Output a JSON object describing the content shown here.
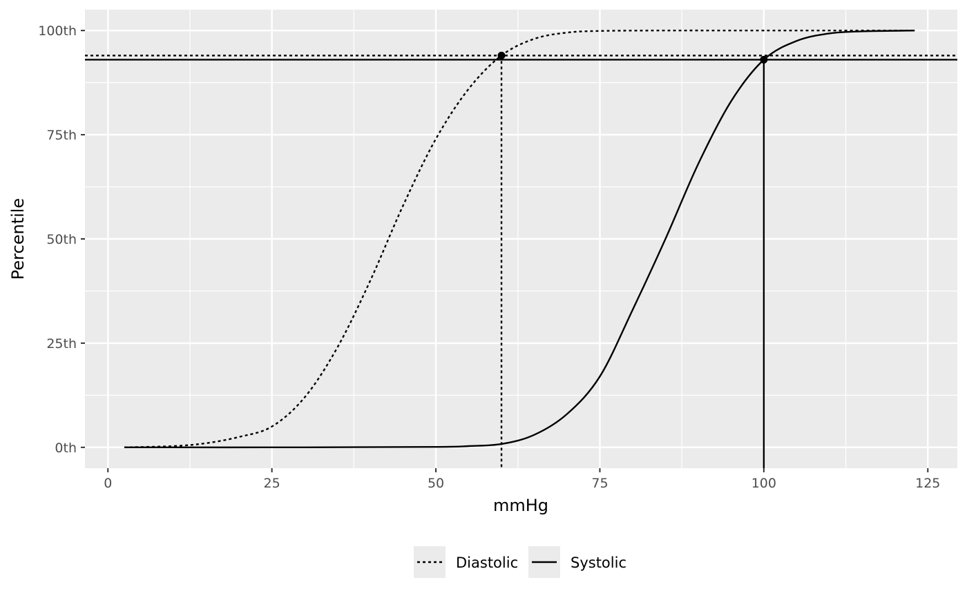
{
  "chart_data": {
    "type": "line",
    "xlabel": "mmHg",
    "ylabel": "Percentile",
    "xlim": [
      -3.5,
      129.5
    ],
    "ylim": [
      -5,
      105
    ],
    "x_ticks": [
      {
        "value": 0,
        "label": "0"
      },
      {
        "value": 25,
        "label": "25"
      },
      {
        "value": 50,
        "label": "50"
      },
      {
        "value": 75,
        "label": "75"
      },
      {
        "value": 100,
        "label": "100"
      },
      {
        "value": 125,
        "label": "125"
      }
    ],
    "y_ticks": [
      {
        "value": 0,
        "label": "0th"
      },
      {
        "value": 25,
        "label": "25th"
      },
      {
        "value": 50,
        "label": "50th"
      },
      {
        "value": 75,
        "label": "75th"
      },
      {
        "value": 100,
        "label": "100th"
      }
    ],
    "grid": true,
    "background": "#ebebeb",
    "legend_position": "bottom",
    "series": [
      {
        "name": "Diastolic",
        "linetype": "dotted",
        "color": "#000000",
        "x": [
          2.5,
          10,
          15,
          20,
          25,
          30,
          35,
          40,
          45,
          50,
          55,
          60,
          65,
          70,
          75,
          85,
          100,
          123
        ],
        "y": [
          0,
          0.3,
          1,
          2.5,
          5,
          12,
          24,
          40,
          58,
          74,
          86,
          94,
          98,
          99.5,
          99.9,
          100,
          100,
          100
        ]
      },
      {
        "name": "Systolic",
        "linetype": "solid",
        "color": "#000000",
        "x": [
          2.5,
          30,
          50,
          55,
          60,
          65,
          70,
          75,
          80,
          85,
          90,
          95,
          100,
          105,
          110,
          115,
          123
        ],
        "y": [
          0,
          0,
          0.1,
          0.3,
          0.8,
          3,
          8,
          17,
          33,
          50,
          68,
          83,
          93,
          97.5,
          99.3,
          99.8,
          100
        ]
      }
    ],
    "reference_points": [
      {
        "series": "Diastolic",
        "x": 60,
        "y": 94
      },
      {
        "series": "Systolic",
        "x": 100,
        "y": 93
      }
    ]
  }
}
